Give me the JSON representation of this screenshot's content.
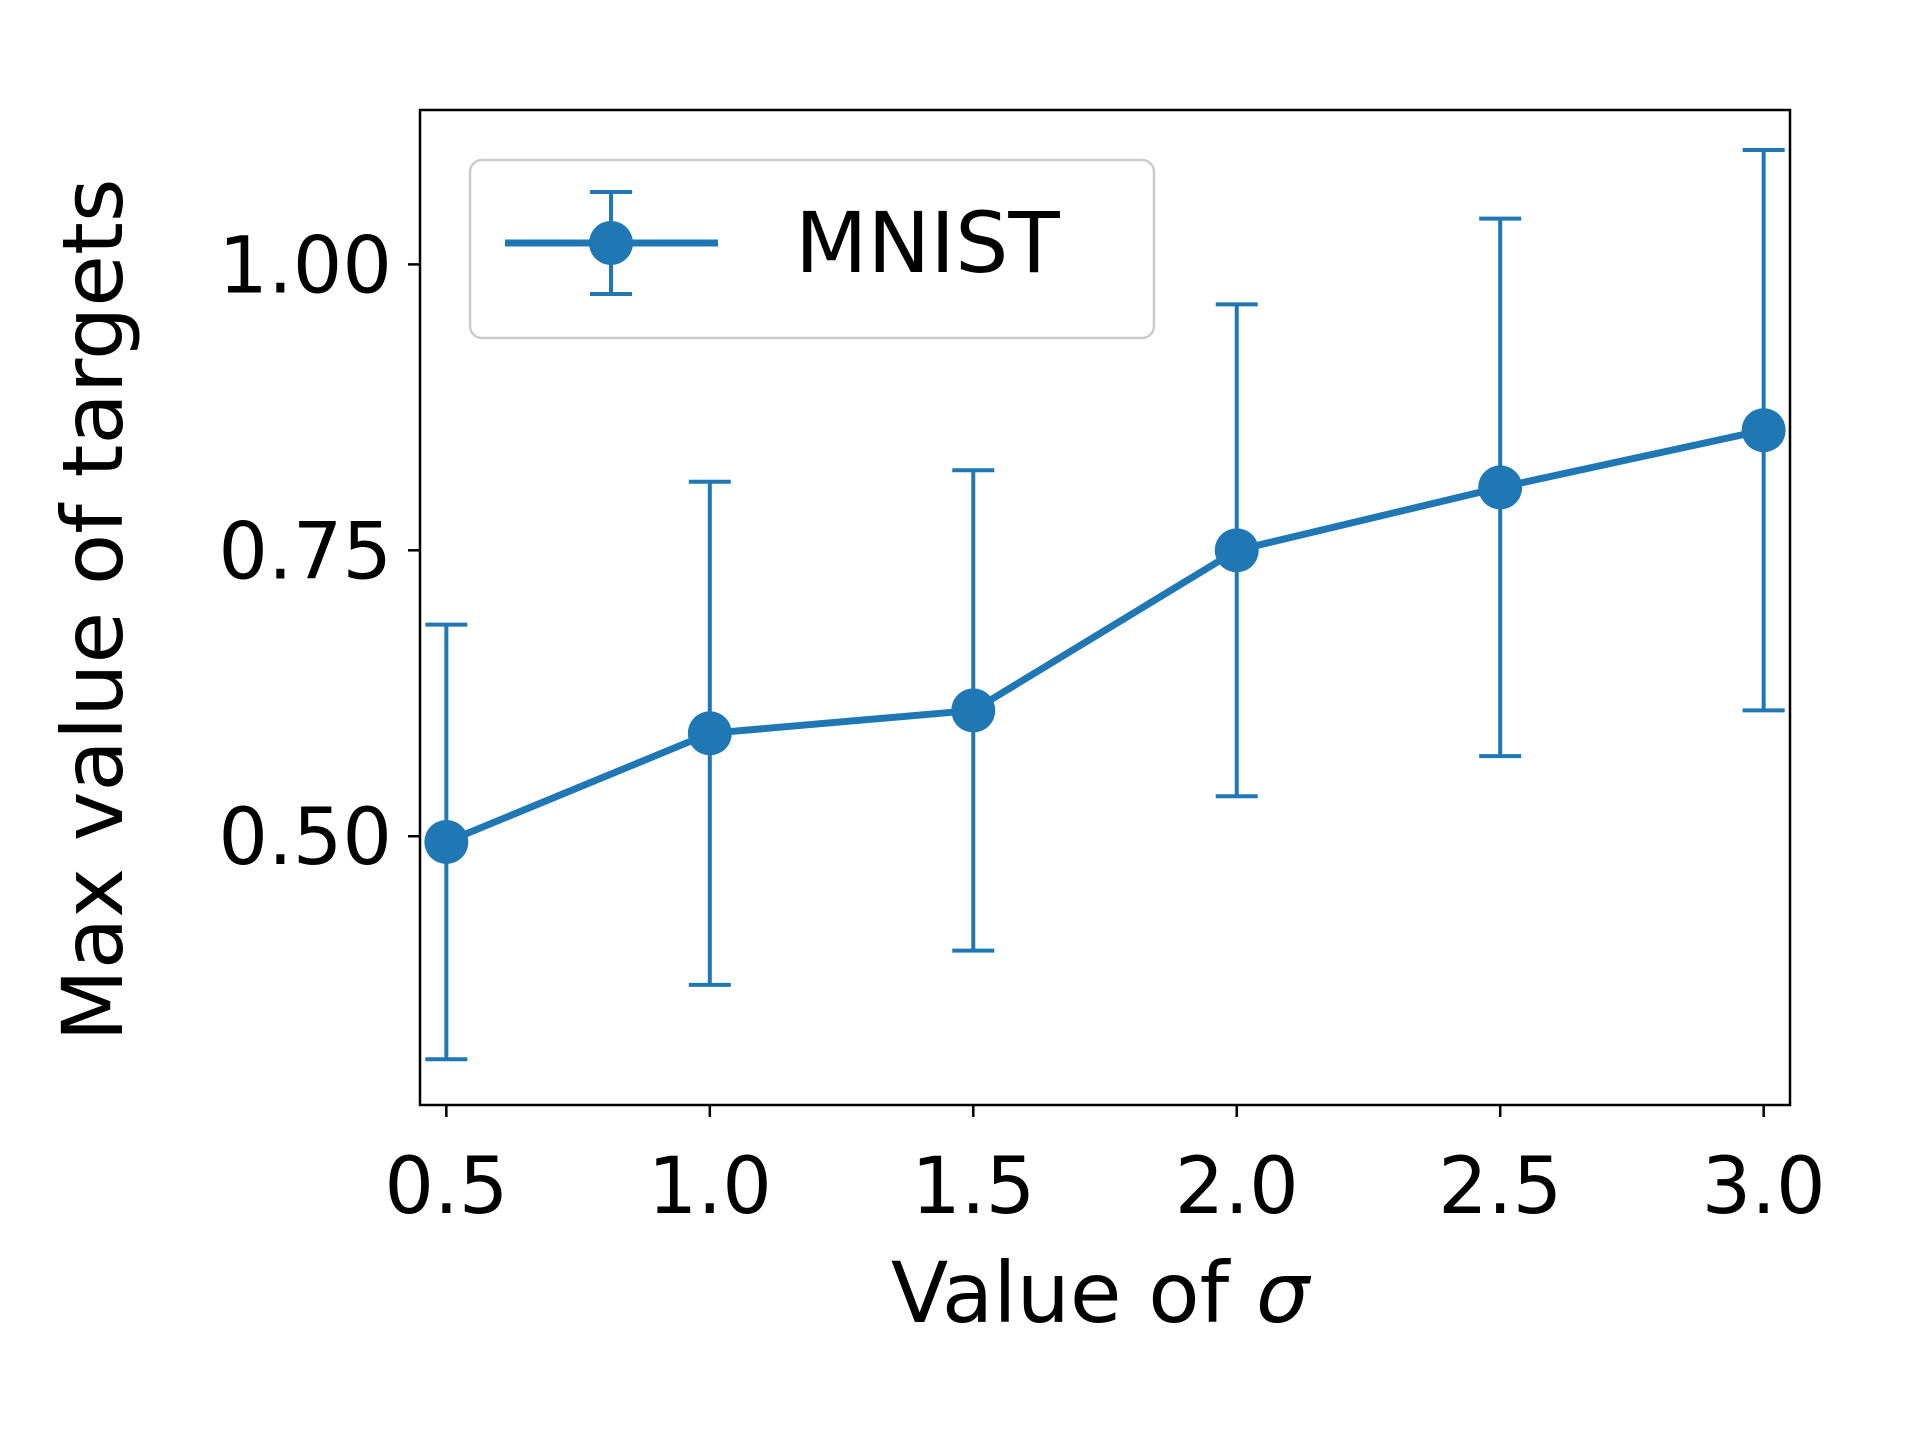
{
  "chart_data": {
    "type": "line",
    "title": "",
    "xlabel": "Value of ",
    "xlabel_symbol": "σ",
    "ylabel": "Max value of targets",
    "xlim": [
      0.45,
      3.05
    ],
    "ylim": [
      0.265,
      1.135
    ],
    "xticks": [
      "0.5",
      "1.0",
      "1.5",
      "2.0",
      "2.5",
      "3.0"
    ],
    "yticks": [
      "0.50",
      "0.75",
      "1.00"
    ],
    "grid": false,
    "legend_position": "top-left",
    "series": [
      {
        "name": "MNIST",
        "color": "#1f77b4",
        "x": [
          0.5,
          1.0,
          1.5,
          2.0,
          2.5,
          3.0
        ],
        "y": [
          0.495,
          0.59,
          0.61,
          0.75,
          0.805,
          0.855
        ],
        "yerr": [
          0.19,
          0.22,
          0.21,
          0.215,
          0.235,
          0.245
        ]
      }
    ]
  }
}
